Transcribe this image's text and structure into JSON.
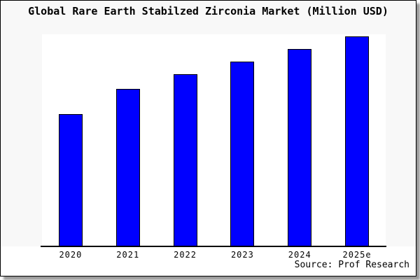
{
  "chart_data": {
    "type": "bar",
    "title": "Global Rare Earth Stabilzed Zirconia Market (Million USD)",
    "categories": [
      "2020",
      "2021",
      "2022",
      "2023",
      "2024",
      "2025e"
    ],
    "values": [
      63,
      75,
      82,
      88,
      94,
      100
    ],
    "ylim": [
      0,
      101
    ],
    "xlabel": "",
    "ylabel": "",
    "grid": false,
    "legend": false,
    "bar_color": "#0000ff",
    "bar_border_color": "#000000",
    "background_color": "#f8f8f8",
    "plot_background_color": "#ffffff",
    "source_label": "Source: Prof Research"
  }
}
